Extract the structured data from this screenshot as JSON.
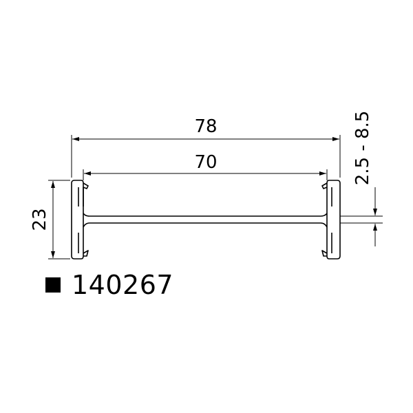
{
  "dimensions": {
    "overall_width": "78",
    "inner_width": "70",
    "height": "23",
    "clamp_range": "2.5 - 8.5"
  },
  "part": {
    "marker_icon": "filled-square-icon",
    "number": "140267"
  },
  "colors": {
    "line": "#000000",
    "background": "#ffffff"
  }
}
